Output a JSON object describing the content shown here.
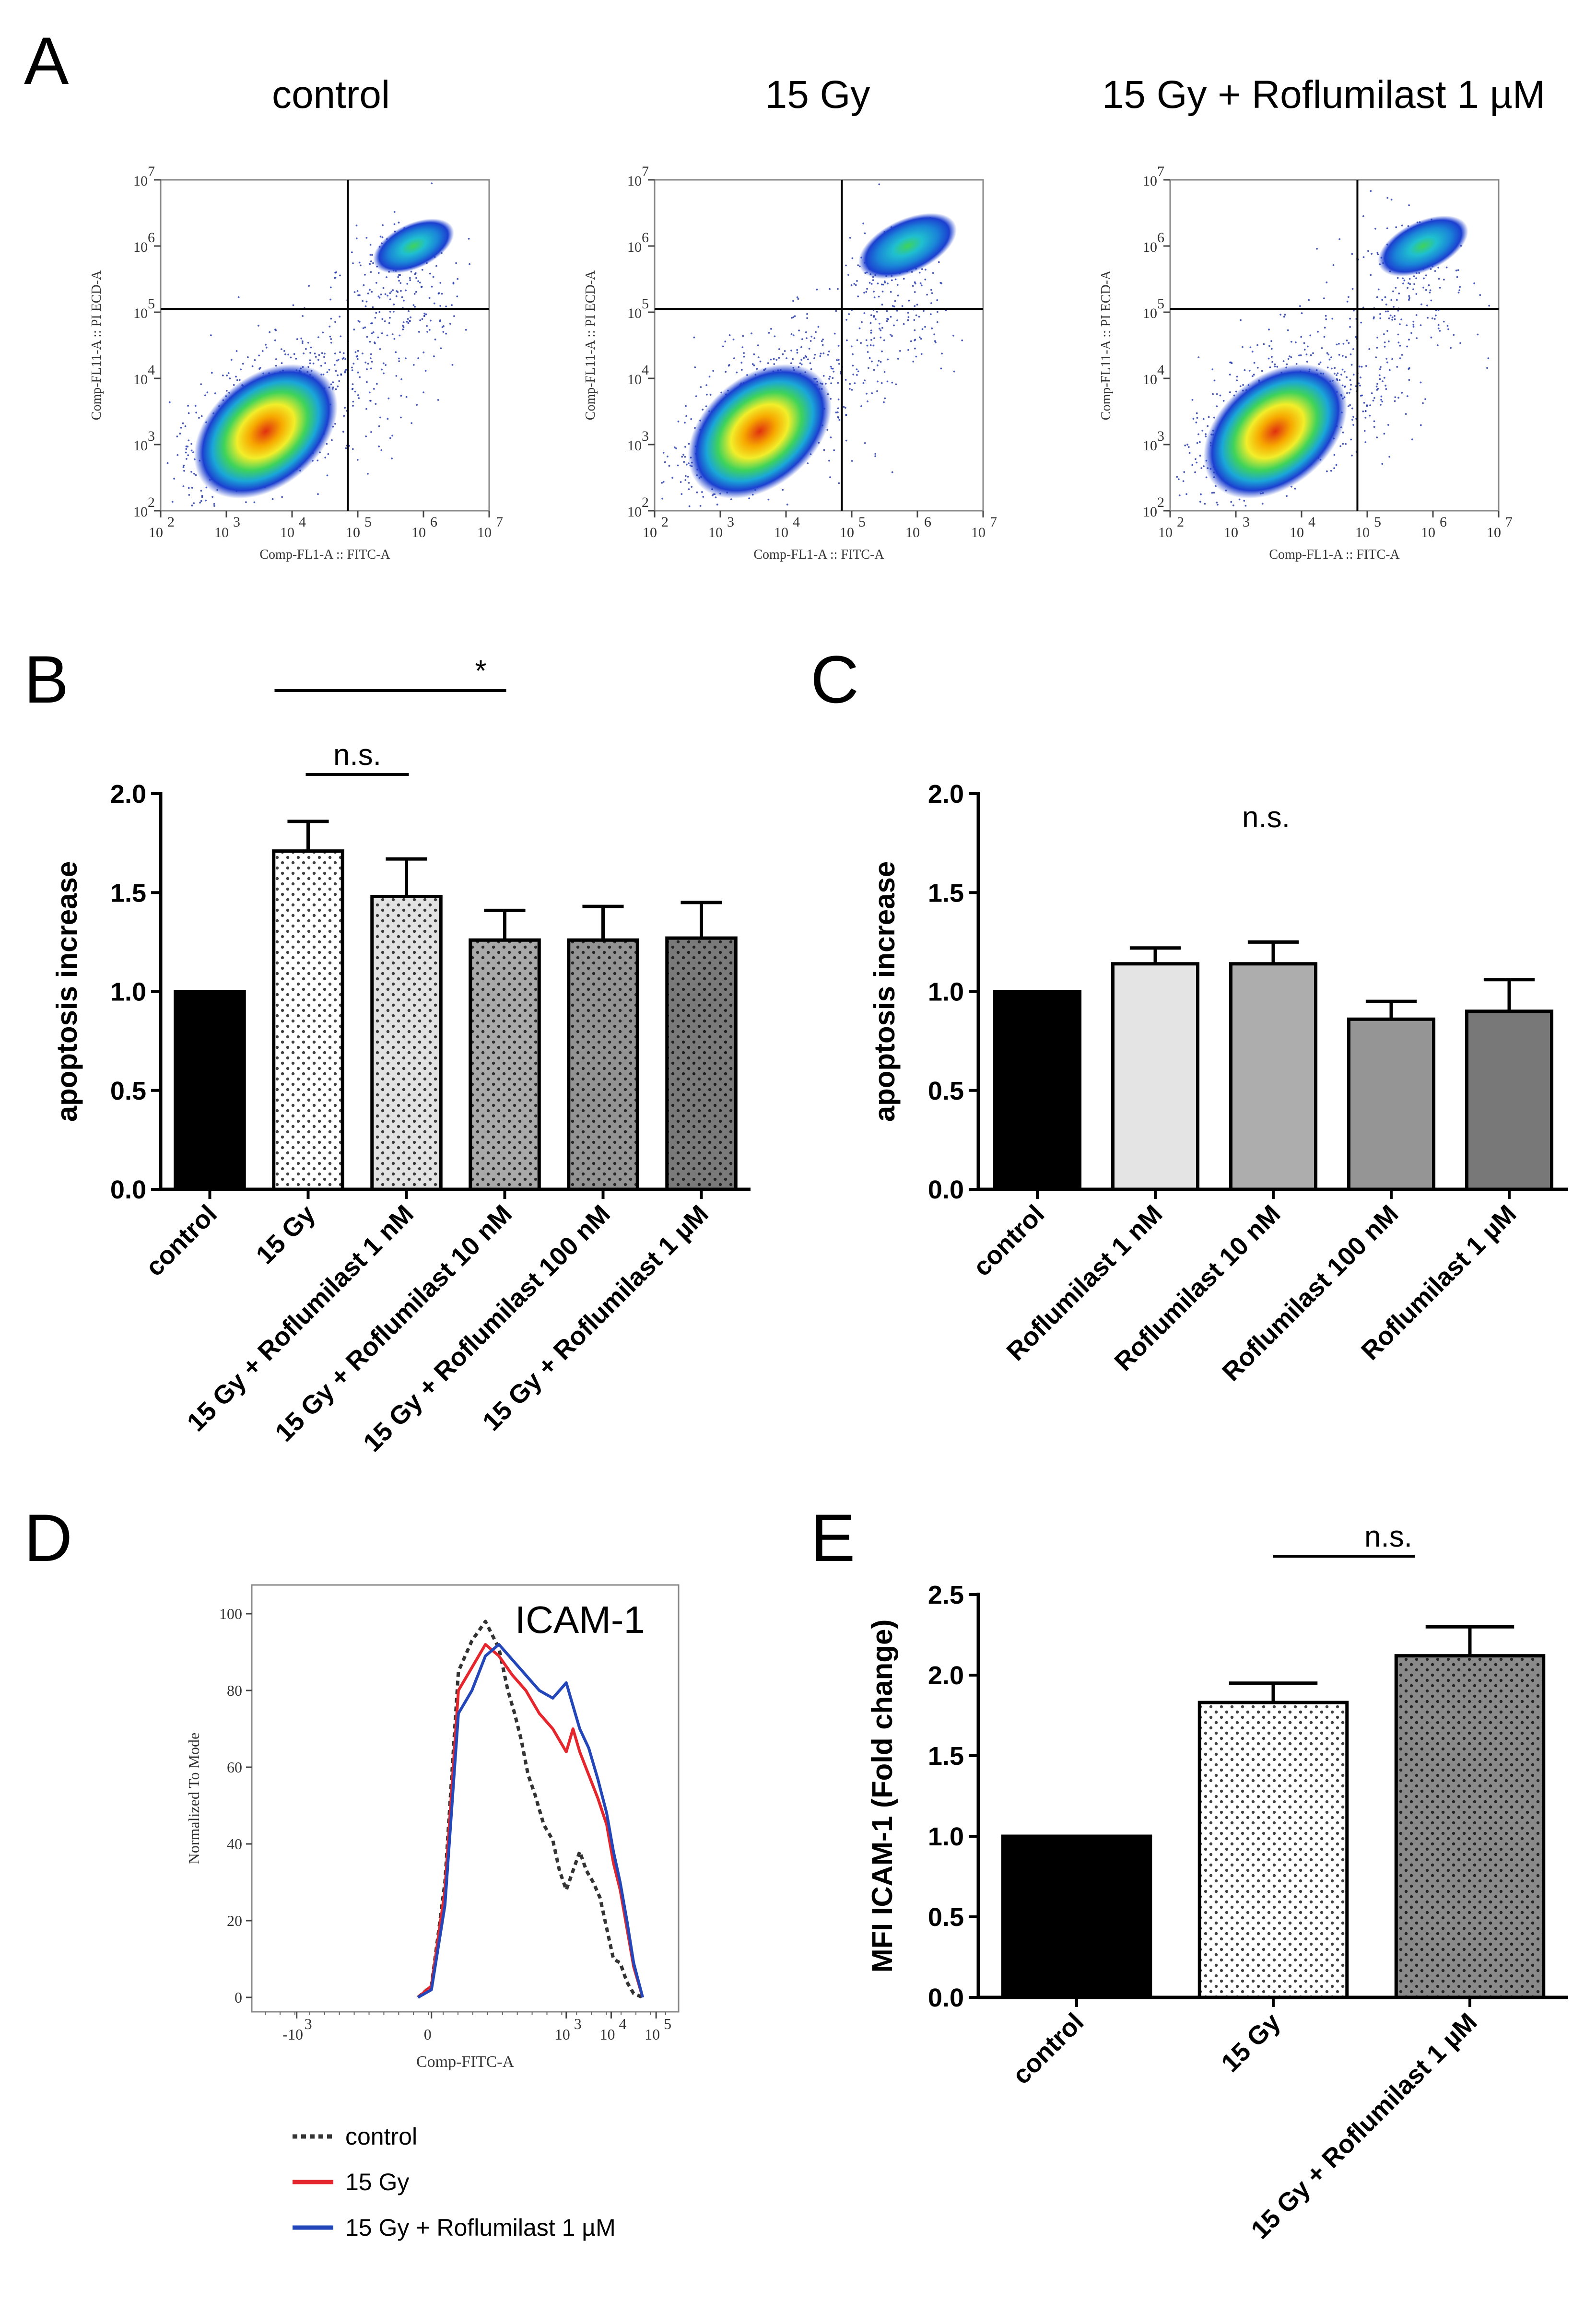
{
  "panels": {
    "a": "A",
    "b": "B",
    "c": "C",
    "d": "D",
    "e": "E"
  },
  "colors": {
    "black": "#000000",
    "red": "#e5262c",
    "blue": "#2346b8",
    "control_gray": "#333333"
  },
  "chart_data": [
    {
      "id": "A",
      "type": "scatter",
      "subtype": "flow-cytometry-density",
      "plots": [
        {
          "title": "control",
          "dead_population": "low"
        },
        {
          "title": "15 Gy",
          "dead_population": "high"
        },
        {
          "title": "15 Gy + Roflumilast 1 µM",
          "dead_population": "medium"
        }
      ],
      "xlabel": "Comp-FL1-A :: FITC-A",
      "ylabel": "Comp-FL11-A :: PI ECD-A",
      "x_ticks": [
        "10",
        "10",
        "10",
        "10",
        "10",
        "10"
      ],
      "x_tick_exponents": [
        "2",
        "3",
        "4",
        "5",
        "6",
        "7"
      ],
      "y_ticks": [
        "10",
        "10",
        "10",
        "10",
        "10",
        "10"
      ],
      "y_tick_exponents": [
        "2",
        "3",
        "4",
        "5",
        "6",
        "7"
      ],
      "gate_x_log": 4.85,
      "gate_y_log": 5.05,
      "xlim_log": [
        2,
        7
      ],
      "ylim_log": [
        2,
        7
      ]
    },
    {
      "id": "B",
      "type": "bar",
      "categories": [
        "control",
        "15 Gy",
        "15 Gy + Roflumilast 1 nM",
        "15 Gy + Roflumilast 10 nM",
        "15 Gy + Roflumilast 100 nM",
        "15 Gy + Roflumilast 1 µM"
      ],
      "values": [
        1.0,
        1.71,
        1.48,
        1.26,
        1.26,
        1.27
      ],
      "errors": [
        0.0,
        0.15,
        0.19,
        0.15,
        0.17,
        0.18
      ],
      "fills": [
        "#000000",
        "#ffffff",
        "#e2e2e2",
        "#a9a9a9",
        "#939393",
        "#7a7a7a"
      ],
      "dotted": [
        false,
        true,
        true,
        true,
        true,
        true
      ],
      "ylabel": "apoptosis increase",
      "ylim": [
        0,
        2.0
      ],
      "yticks": [
        "0.0",
        "0.5",
        "1.0",
        "1.5",
        "2.0"
      ],
      "annotations": [
        {
          "text": "*",
          "from": 1,
          "to": 3
        },
        {
          "text": "n.s.",
          "from": 1,
          "to": 2
        }
      ]
    },
    {
      "id": "C",
      "type": "bar",
      "categories": [
        "control",
        "Roflumilast 1 nM",
        "Roflumilast 10 nM",
        "Roflumilast 100 nM",
        "Roflumilast 1 µM"
      ],
      "values": [
        1.0,
        1.14,
        1.14,
        0.86,
        0.9
      ],
      "errors": [
        0.0,
        0.08,
        0.11,
        0.09,
        0.16
      ],
      "fills": [
        "#000000",
        "#e4e4e4",
        "#adadad",
        "#959595",
        "#787878"
      ],
      "dotted": [
        false,
        false,
        false,
        false,
        false
      ],
      "ylabel": "apoptosis increase",
      "ylim": [
        0,
        2.0
      ],
      "yticks": [
        "0.0",
        "0.5",
        "1.0",
        "1.5",
        "2.0"
      ],
      "annotations": [
        {
          "text": "n.s."
        }
      ]
    },
    {
      "id": "D",
      "type": "line",
      "subtype": "flow-cytometry-histogram",
      "title": "ICAM-1",
      "xlabel": "Comp-FITC-A",
      "ylabel": "Normalized To Mode",
      "x_ticks": [
        {
          "label": "-10",
          "exp": "3",
          "pos": -3
        },
        {
          "label": "0",
          "exp": "",
          "pos": 0
        },
        {
          "label": "10",
          "exp": "3",
          "pos": 3
        },
        {
          "label": "10",
          "exp": "4",
          "pos": 4
        },
        {
          "label": "10",
          "exp": "5",
          "pos": 5
        }
      ],
      "y_ticks": [
        "0",
        "20",
        "40",
        "60",
        "80",
        "100"
      ],
      "ylim": [
        0,
        100
      ],
      "xlim": [
        -4,
        5.5
      ],
      "series": [
        {
          "name": "control",
          "color": "#333333",
          "dashed": true,
          "x": [
            -0.3,
            0.0,
            0.3,
            0.6,
            0.9,
            1.2,
            1.5,
            1.7,
            1.85,
            2.0,
            2.15,
            2.3,
            2.5,
            2.7,
            2.85,
            3.0,
            3.15,
            3.3,
            3.45,
            3.6,
            3.75,
            3.9,
            4.05,
            4.2,
            4.35,
            4.5,
            4.7
          ],
          "y": [
            0,
            3,
            30,
            85,
            93,
            98,
            91,
            80,
            74,
            67,
            58,
            53,
            45,
            41,
            33,
            28,
            33,
            38,
            33,
            30,
            26,
            18,
            10,
            9,
            4,
            1,
            0
          ]
        },
        {
          "name": "15 Gy",
          "color": "#e5262c",
          "dashed": false,
          "x": [
            -0.3,
            0.0,
            0.3,
            0.6,
            0.9,
            1.2,
            1.5,
            1.8,
            2.1,
            2.4,
            2.7,
            3.0,
            3.15,
            3.3,
            3.5,
            3.7,
            3.9,
            4.05,
            4.2,
            4.35,
            4.5,
            4.7
          ],
          "y": [
            0,
            3,
            28,
            80,
            86,
            92,
            89,
            84,
            80,
            74,
            70,
            64,
            70,
            64,
            58,
            52,
            45,
            35,
            28,
            18,
            8,
            0
          ]
        },
        {
          "name": "15 Gy + Roflumilast 1 µM",
          "color": "#2346b8",
          "dashed": false,
          "x": [
            -0.3,
            0.0,
            0.3,
            0.6,
            0.9,
            1.2,
            1.5,
            1.8,
            2.1,
            2.4,
            2.7,
            3.0,
            3.15,
            3.3,
            3.5,
            3.7,
            3.9,
            4.05,
            4.2,
            4.35,
            4.5,
            4.7
          ],
          "y": [
            0,
            2,
            24,
            74,
            80,
            89,
            92,
            88,
            84,
            80,
            78,
            82,
            76,
            70,
            65,
            57,
            48,
            38,
            30,
            20,
            9,
            0
          ]
        }
      ]
    },
    {
      "id": "E",
      "type": "bar",
      "categories": [
        "control",
        "15 Gy",
        "15 Gy + Roflumilast 1 µM"
      ],
      "values": [
        1.0,
        1.83,
        2.12
      ],
      "errors": [
        0.0,
        0.12,
        0.18
      ],
      "fills": [
        "#000000",
        "#ffffff",
        "#8a8a8a"
      ],
      "dotted": [
        false,
        true,
        true
      ],
      "ylabel": "MFI ICAM-1 (Fold change)",
      "ylim": [
        0,
        2.5
      ],
      "yticks": [
        "0.0",
        "0.5",
        "1.0",
        "1.5",
        "2.0",
        "2.5"
      ],
      "annotations": [
        {
          "text": "n.s.",
          "from": 1,
          "to": 2
        }
      ]
    }
  ]
}
